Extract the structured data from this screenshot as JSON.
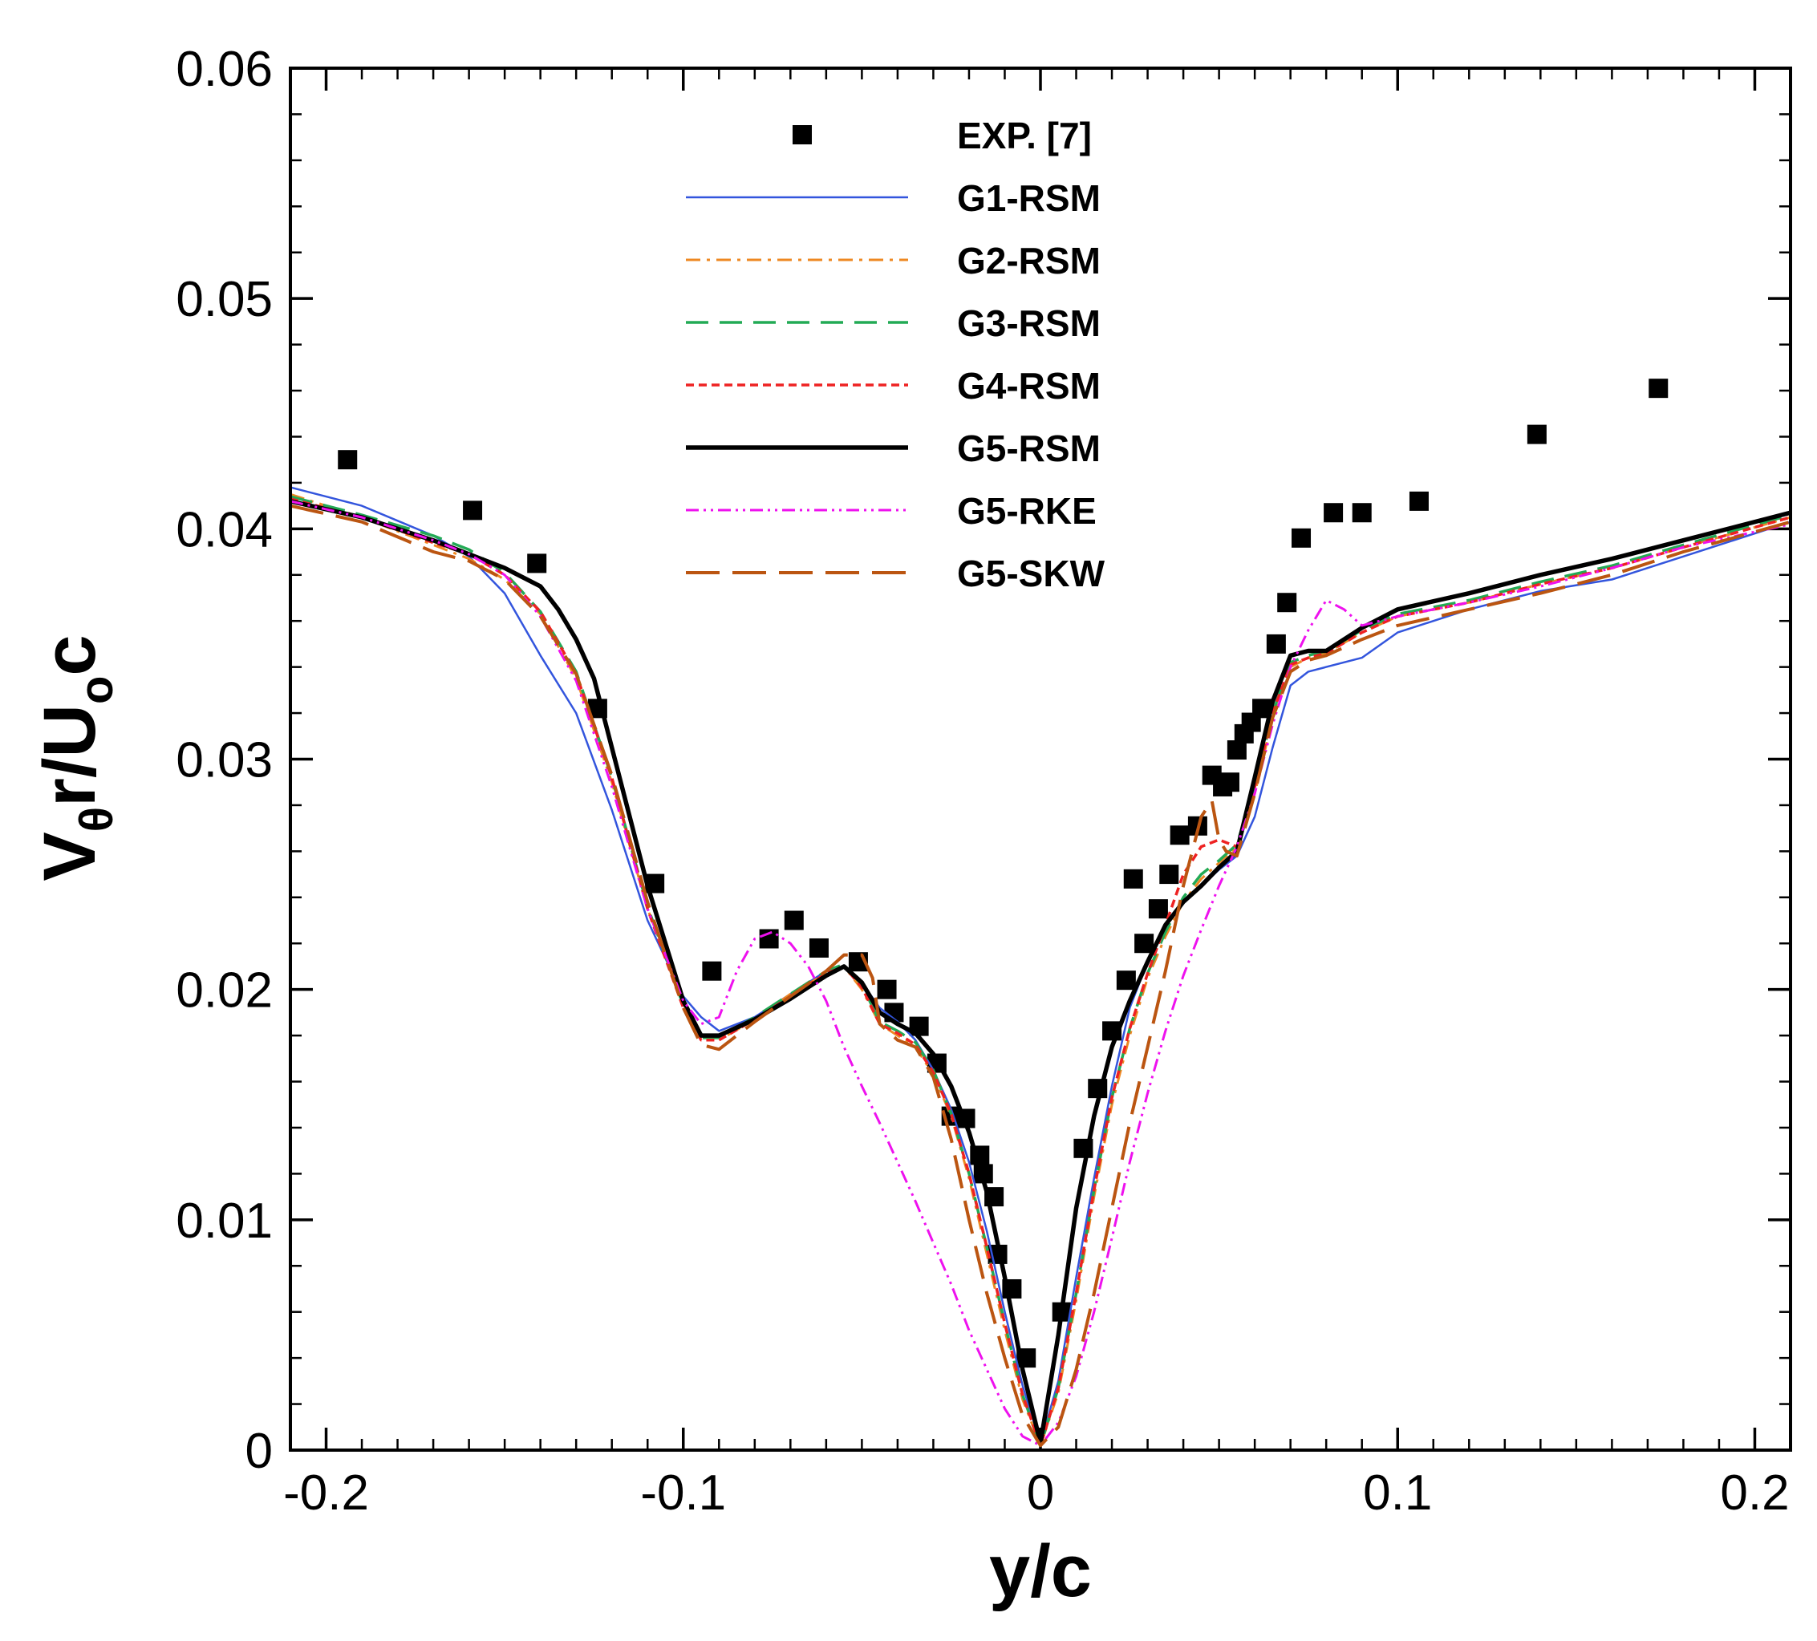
{
  "chart_data": {
    "type": "line",
    "title": "",
    "xlabel": "y/c",
    "ylabel": {
      "main": "V",
      "sub1": "θ",
      "mid": "r/U",
      "sub2": "o",
      "end": "c"
    },
    "xlim": [
      -0.21,
      0.21
    ],
    "ylim": [
      0,
      0.06
    ],
    "x_ticks": [
      -0.2,
      -0.1,
      0,
      0.1,
      0.2
    ],
    "x_tick_labels": [
      "-0.2",
      "-0.1",
      "0",
      "0.1",
      "0.2"
    ],
    "y_ticks": [
      0,
      0.01,
      0.02,
      0.03,
      0.04,
      0.05,
      0.06
    ],
    "y_tick_labels": [
      "0",
      "0.01",
      "0.02",
      "0.03",
      "0.04",
      "0.05",
      "0.06"
    ],
    "grid": false,
    "legend_position": "top-center",
    "series": [
      {
        "name": "EXP. [7]",
        "kind": "markers",
        "color": "#000000",
        "points": [
          [
            -0.194,
            0.043
          ],
          [
            -0.159,
            0.0408
          ],
          [
            -0.141,
            0.0385
          ],
          [
            -0.124,
            0.0322
          ],
          [
            -0.108,
            0.0246
          ],
          [
            -0.092,
            0.0208
          ],
          [
            -0.076,
            0.0222
          ],
          [
            -0.069,
            0.023
          ],
          [
            -0.062,
            0.0218
          ],
          [
            -0.051,
            0.0212
          ],
          [
            -0.043,
            0.02
          ],
          [
            -0.041,
            0.019
          ],
          [
            -0.034,
            0.0184
          ],
          [
            -0.029,
            0.0168
          ],
          [
            -0.025,
            0.0145
          ],
          [
            -0.021,
            0.0144
          ],
          [
            -0.017,
            0.0128
          ],
          [
            -0.016,
            0.012
          ],
          [
            -0.013,
            0.011
          ],
          [
            -0.012,
            0.0085
          ],
          [
            -0.008,
            0.007
          ],
          [
            -0.004,
            0.004
          ],
          [
            0.006,
            0.006
          ],
          [
            0.012,
            0.0131
          ],
          [
            0.016,
            0.0157
          ],
          [
            0.02,
            0.0182
          ],
          [
            0.024,
            0.0204
          ],
          [
            0.026,
            0.0248
          ],
          [
            0.029,
            0.022
          ],
          [
            0.033,
            0.0235
          ],
          [
            0.036,
            0.025
          ],
          [
            0.039,
            0.0267
          ],
          [
            0.044,
            0.0271
          ],
          [
            0.048,
            0.0293
          ],
          [
            0.051,
            0.0288
          ],
          [
            0.053,
            0.029
          ],
          [
            0.055,
            0.0304
          ],
          [
            0.057,
            0.0311
          ],
          [
            0.059,
            0.0316
          ],
          [
            0.062,
            0.0322
          ],
          [
            0.066,
            0.035
          ],
          [
            0.069,
            0.0368
          ],
          [
            0.073,
            0.0396
          ],
          [
            0.082,
            0.0407
          ],
          [
            0.09,
            0.0407
          ],
          [
            0.106,
            0.0412
          ],
          [
            0.139,
            0.0441
          ],
          [
            0.173,
            0.0461
          ]
        ]
      },
      {
        "name": "G1-RSM",
        "kind": "line",
        "color": "#3355dd",
        "dash": "",
        "width": 2.5,
        "x": [
          -0.21,
          -0.19,
          -0.17,
          -0.16,
          -0.15,
          -0.14,
          -0.13,
          -0.12,
          -0.11,
          -0.1,
          -0.095,
          -0.09,
          -0.08,
          -0.07,
          -0.06,
          -0.055,
          -0.05,
          -0.045,
          -0.04,
          -0.035,
          -0.03,
          -0.025,
          -0.02,
          -0.015,
          -0.01,
          -0.005,
          0,
          0.005,
          0.01,
          0.015,
          0.02,
          0.025,
          0.03,
          0.035,
          0.04,
          0.045,
          0.05,
          0.055,
          0.06,
          0.065,
          0.07,
          0.075,
          0.08,
          0.09,
          0.1,
          0.12,
          0.14,
          0.16,
          0.18,
          0.21
        ],
        "y": [
          0.0418,
          0.041,
          0.0397,
          0.0388,
          0.0372,
          0.0345,
          0.032,
          0.0278,
          0.023,
          0.0197,
          0.0188,
          0.0182,
          0.0188,
          0.0198,
          0.0208,
          0.021,
          0.0203,
          0.0192,
          0.0186,
          0.0178,
          0.0165,
          0.0148,
          0.0125,
          0.0095,
          0.006,
          0.0028,
          0.0003,
          0.003,
          0.0075,
          0.0118,
          0.0158,
          0.0192,
          0.0212,
          0.0228,
          0.0238,
          0.0245,
          0.0252,
          0.0258,
          0.0275,
          0.0305,
          0.0332,
          0.0338,
          0.034,
          0.0344,
          0.0355,
          0.0365,
          0.0373,
          0.0378,
          0.0388,
          0.0403
        ]
      },
      {
        "name": "G2-RSM",
        "kind": "line",
        "color": "#ee8822",
        "dash": "18 8 4 8",
        "width": 3,
        "x": [
          -0.21,
          -0.19,
          -0.17,
          -0.16,
          -0.15,
          -0.14,
          -0.13,
          -0.12,
          -0.11,
          -0.1,
          -0.095,
          -0.09,
          -0.08,
          -0.07,
          -0.06,
          -0.055,
          -0.05,
          -0.045,
          -0.04,
          -0.035,
          -0.03,
          -0.025,
          -0.02,
          -0.015,
          -0.01,
          -0.005,
          0,
          0.005,
          0.01,
          0.015,
          0.02,
          0.025,
          0.03,
          0.035,
          0.04,
          0.045,
          0.05,
          0.055,
          0.06,
          0.065,
          0.07,
          0.075,
          0.08,
          0.09,
          0.1,
          0.12,
          0.14,
          0.16,
          0.18,
          0.21
        ],
        "y": [
          0.0415,
          0.0405,
          0.0393,
          0.0387,
          0.0378,
          0.0363,
          0.0335,
          0.029,
          0.0235,
          0.0195,
          0.018,
          0.0178,
          0.0187,
          0.0198,
          0.0207,
          0.021,
          0.02,
          0.0185,
          0.018,
          0.0175,
          0.0163,
          0.0145,
          0.0118,
          0.0085,
          0.0052,
          0.0022,
          0.0002,
          0.0025,
          0.0065,
          0.011,
          0.015,
          0.018,
          0.0205,
          0.0223,
          0.0238,
          0.0248,
          0.0255,
          0.0262,
          0.0285,
          0.0318,
          0.034,
          0.0344,
          0.0346,
          0.0355,
          0.0362,
          0.0368,
          0.0376,
          0.0383,
          0.0392,
          0.0405
        ]
      },
      {
        "name": "G3-RSM",
        "kind": "line",
        "color": "#22aa55",
        "dash": "28 14",
        "width": 3.5,
        "x": [
          -0.21,
          -0.19,
          -0.17,
          -0.16,
          -0.15,
          -0.14,
          -0.13,
          -0.12,
          -0.11,
          -0.1,
          -0.095,
          -0.09,
          -0.08,
          -0.07,
          -0.06,
          -0.055,
          -0.05,
          -0.045,
          -0.04,
          -0.035,
          -0.03,
          -0.025,
          -0.02,
          -0.015,
          -0.01,
          -0.005,
          0,
          0.005,
          0.01,
          0.015,
          0.02,
          0.025,
          0.03,
          0.035,
          0.04,
          0.045,
          0.05,
          0.055,
          0.06,
          0.065,
          0.07,
          0.075,
          0.08,
          0.09,
          0.1,
          0.12,
          0.14,
          0.16,
          0.18,
          0.21
        ],
        "y": [
          0.0414,
          0.0406,
          0.0397,
          0.0391,
          0.0381,
          0.0364,
          0.0338,
          0.0292,
          0.0236,
          0.0193,
          0.0179,
          0.0179,
          0.0188,
          0.0198,
          0.0208,
          0.0211,
          0.0202,
          0.0186,
          0.0182,
          0.0177,
          0.0165,
          0.0146,
          0.012,
          0.0088,
          0.0055,
          0.0024,
          0.0002,
          0.0027,
          0.0068,
          0.0113,
          0.0153,
          0.0183,
          0.0207,
          0.0225,
          0.024,
          0.025,
          0.0256,
          0.0263,
          0.0288,
          0.032,
          0.0342,
          0.0345,
          0.0347,
          0.0356,
          0.0363,
          0.0369,
          0.0377,
          0.0384,
          0.0393,
          0.0406
        ]
      },
      {
        "name": "G4-RSM",
        "kind": "line",
        "color": "#ee2222",
        "dash": "10 6",
        "width": 3.5,
        "x": [
          -0.21,
          -0.19,
          -0.17,
          -0.16,
          -0.15,
          -0.14,
          -0.13,
          -0.12,
          -0.11,
          -0.1,
          -0.095,
          -0.09,
          -0.08,
          -0.07,
          -0.06,
          -0.055,
          -0.05,
          -0.045,
          -0.04,
          -0.035,
          -0.03,
          -0.025,
          -0.02,
          -0.015,
          -0.01,
          -0.005,
          0,
          0.005,
          0.01,
          0.015,
          0.02,
          0.025,
          0.03,
          0.035,
          0.04,
          0.045,
          0.05,
          0.055,
          0.06,
          0.065,
          0.07,
          0.075,
          0.08,
          0.09,
          0.1,
          0.12,
          0.14,
          0.16,
          0.18,
          0.21
        ],
        "y": [
          0.0413,
          0.0405,
          0.0394,
          0.0389,
          0.038,
          0.0364,
          0.0337,
          0.0292,
          0.0235,
          0.0192,
          0.0178,
          0.0178,
          0.0187,
          0.0197,
          0.0207,
          0.021,
          0.0201,
          0.0185,
          0.0181,
          0.0176,
          0.0164,
          0.0146,
          0.012,
          0.0088,
          0.0055,
          0.0024,
          0.0002,
          0.0027,
          0.0068,
          0.0113,
          0.0153,
          0.0183,
          0.0207,
          0.0228,
          0.025,
          0.0262,
          0.0265,
          0.0262,
          0.0288,
          0.032,
          0.0341,
          0.0344,
          0.0346,
          0.0355,
          0.0362,
          0.0368,
          0.0376,
          0.0383,
          0.0392,
          0.0405
        ]
      },
      {
        "name": "G5-RSM",
        "kind": "line",
        "color": "#000000",
        "dash": "",
        "width": 5.5,
        "x": [
          -0.21,
          -0.19,
          -0.17,
          -0.16,
          -0.15,
          -0.14,
          -0.135,
          -0.13,
          -0.125,
          -0.12,
          -0.11,
          -0.1,
          -0.095,
          -0.09,
          -0.08,
          -0.07,
          -0.06,
          -0.055,
          -0.05,
          -0.045,
          -0.04,
          -0.035,
          -0.03,
          -0.025,
          -0.02,
          -0.015,
          -0.01,
          -0.005,
          0,
          0.005,
          0.01,
          0.015,
          0.02,
          0.025,
          0.03,
          0.035,
          0.04,
          0.045,
          0.05,
          0.055,
          0.06,
          0.065,
          0.07,
          0.075,
          0.08,
          0.09,
          0.1,
          0.12,
          0.14,
          0.16,
          0.18,
          0.21
        ],
        "y": [
          0.0412,
          0.0405,
          0.0395,
          0.0389,
          0.0383,
          0.0375,
          0.0365,
          0.0352,
          0.0335,
          0.0305,
          0.0245,
          0.0195,
          0.018,
          0.018,
          0.0187,
          0.0196,
          0.0206,
          0.021,
          0.0203,
          0.019,
          0.0185,
          0.0181,
          0.0172,
          0.0158,
          0.0138,
          0.0112,
          0.0075,
          0.0035,
          0.0003,
          0.005,
          0.0105,
          0.0145,
          0.0175,
          0.0195,
          0.0212,
          0.0228,
          0.0238,
          0.0245,
          0.0253,
          0.026,
          0.0292,
          0.0325,
          0.0345,
          0.0347,
          0.0347,
          0.0357,
          0.0365,
          0.0372,
          0.038,
          0.0387,
          0.0395,
          0.0407
        ]
      },
      {
        "name": "G5-RKE",
        "kind": "line",
        "color": "#ee11ee",
        "dash": "16 6 3 6 3 6",
        "width": 3,
        "x": [
          -0.21,
          -0.19,
          -0.17,
          -0.16,
          -0.15,
          -0.14,
          -0.13,
          -0.12,
          -0.11,
          -0.1,
          -0.095,
          -0.09,
          -0.085,
          -0.08,
          -0.075,
          -0.07,
          -0.065,
          -0.06,
          -0.055,
          -0.05,
          -0.045,
          -0.04,
          -0.035,
          -0.03,
          -0.025,
          -0.02,
          -0.015,
          -0.01,
          -0.005,
          0,
          0.005,
          0.01,
          0.015,
          0.02,
          0.025,
          0.03,
          0.035,
          0.04,
          0.045,
          0.05,
          0.055,
          0.06,
          0.065,
          0.07,
          0.075,
          0.08,
          0.085,
          0.09,
          0.1,
          0.12,
          0.14,
          0.16,
          0.18,
          0.21
        ],
        "y": [
          0.0412,
          0.0405,
          0.0395,
          0.0389,
          0.038,
          0.0362,
          0.0334,
          0.0288,
          0.0235,
          0.0195,
          0.0185,
          0.0188,
          0.0208,
          0.0222,
          0.0225,
          0.022,
          0.021,
          0.0195,
          0.0175,
          0.0158,
          0.0142,
          0.0125,
          0.0108,
          0.009,
          0.0072,
          0.0052,
          0.0035,
          0.0018,
          0.0006,
          0.0002,
          0.0012,
          0.0032,
          0.006,
          0.0092,
          0.0125,
          0.0155,
          0.0182,
          0.0206,
          0.0226,
          0.0245,
          0.0262,
          0.0285,
          0.0315,
          0.034,
          0.0356,
          0.0369,
          0.0365,
          0.0358,
          0.0362,
          0.0368,
          0.0375,
          0.0383,
          0.0392,
          0.0402
        ]
      },
      {
        "name": "G5-SKW",
        "kind": "line",
        "color": "#bb5511",
        "dash": "42 16",
        "width": 4,
        "x": [
          -0.21,
          -0.19,
          -0.17,
          -0.16,
          -0.15,
          -0.14,
          -0.13,
          -0.12,
          -0.11,
          -0.1,
          -0.095,
          -0.09,
          -0.08,
          -0.07,
          -0.06,
          -0.055,
          -0.05,
          -0.047,
          -0.045,
          -0.04,
          -0.035,
          -0.03,
          -0.025,
          -0.02,
          -0.015,
          -0.01,
          -0.005,
          0,
          0.005,
          0.01,
          0.015,
          0.02,
          0.025,
          0.03,
          0.035,
          0.04,
          0.045,
          0.048,
          0.05,
          0.052,
          0.055,
          0.06,
          0.065,
          0.07,
          0.075,
          0.08,
          0.09,
          0.1,
          0.12,
          0.14,
          0.16,
          0.18,
          0.21
        ],
        "y": [
          0.041,
          0.0403,
          0.039,
          0.0386,
          0.0378,
          0.0362,
          0.0337,
          0.0293,
          0.0238,
          0.0192,
          0.0176,
          0.0174,
          0.0186,
          0.0197,
          0.0208,
          0.0215,
          0.0215,
          0.0205,
          0.0185,
          0.0178,
          0.0175,
          0.0162,
          0.0135,
          0.01,
          0.0068,
          0.004,
          0.0015,
          0.0002,
          0.001,
          0.0035,
          0.0068,
          0.0105,
          0.0142,
          0.0175,
          0.0208,
          0.0245,
          0.0275,
          0.0282,
          0.0265,
          0.026,
          0.0258,
          0.0285,
          0.0318,
          0.0338,
          0.0343,
          0.0345,
          0.0352,
          0.0358,
          0.0365,
          0.0372,
          0.038,
          0.039,
          0.0403
        ]
      }
    ]
  }
}
